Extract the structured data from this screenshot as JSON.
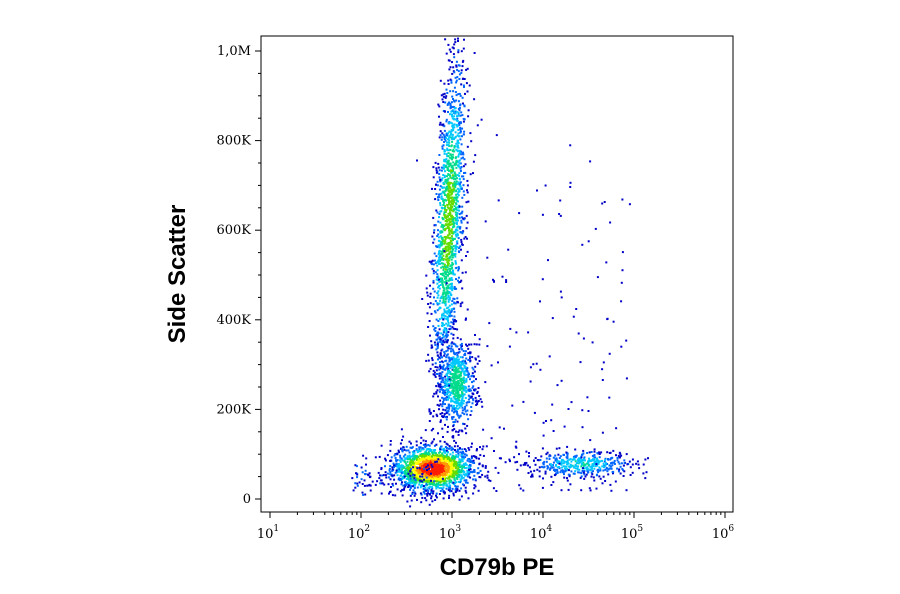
{
  "chart_data": {
    "type": "scatter",
    "subtype": "flow-cytometry-density-dot-plot",
    "xlabel": "CD79b PE",
    "ylabel": "Side Scatter",
    "x_scale": "log",
    "xlim": [
      10,
      1000000
    ],
    "ylim": [
      -30000,
      1030000
    ],
    "y_scale": "linear",
    "x_ticks": [
      {
        "value": 10,
        "base": "10",
        "exp": "1"
      },
      {
        "value": 100,
        "base": "10",
        "exp": "2"
      },
      {
        "value": 1000,
        "base": "10",
        "exp": "3"
      },
      {
        "value": 10000,
        "base": "10",
        "exp": "4"
      },
      {
        "value": 100000,
        "base": "10",
        "exp": "5"
      },
      {
        "value": 1000000,
        "base": "10",
        "exp": "6"
      }
    ],
    "y_ticks": [
      {
        "value": 0,
        "label": "0"
      },
      {
        "value": 200000,
        "label": "200K"
      },
      {
        "value": 400000,
        "label": "400K"
      },
      {
        "value": 600000,
        "label": "600K"
      },
      {
        "value": 800000,
        "label": "800K"
      },
      {
        "value": 1000000,
        "label": "1,0M"
      }
    ],
    "grid": false,
    "legend": "none",
    "density_colormap": [
      "#0000c8",
      "#0064ff",
      "#00c8ff",
      "#00dc8c",
      "#64dc00",
      "#ffff00",
      "#ff9600",
      "#ff1e00"
    ],
    "populations": [
      {
        "name": "lymphocytes-low",
        "x_center": 600,
        "y_center": 70000,
        "x_spread_decades": 0.22,
        "y_spread": 25000,
        "peak_density": 1.0
      },
      {
        "name": "granulocytes",
        "x_center": 900,
        "y_center": 620000,
        "x_spread_decades": 0.08,
        "y_spread": 180000,
        "peak_density": 0.55
      },
      {
        "name": "monocytes",
        "x_center": 1100,
        "y_center": 260000,
        "x_spread_decades": 0.1,
        "y_spread": 50000,
        "peak_density": 0.45
      },
      {
        "name": "cd79b-positive-b-cells",
        "x_center": 25000,
        "y_center": 80000,
        "x_spread_decades": 0.3,
        "y_spread": 15000,
        "peak_density": 0.35
      }
    ]
  }
}
